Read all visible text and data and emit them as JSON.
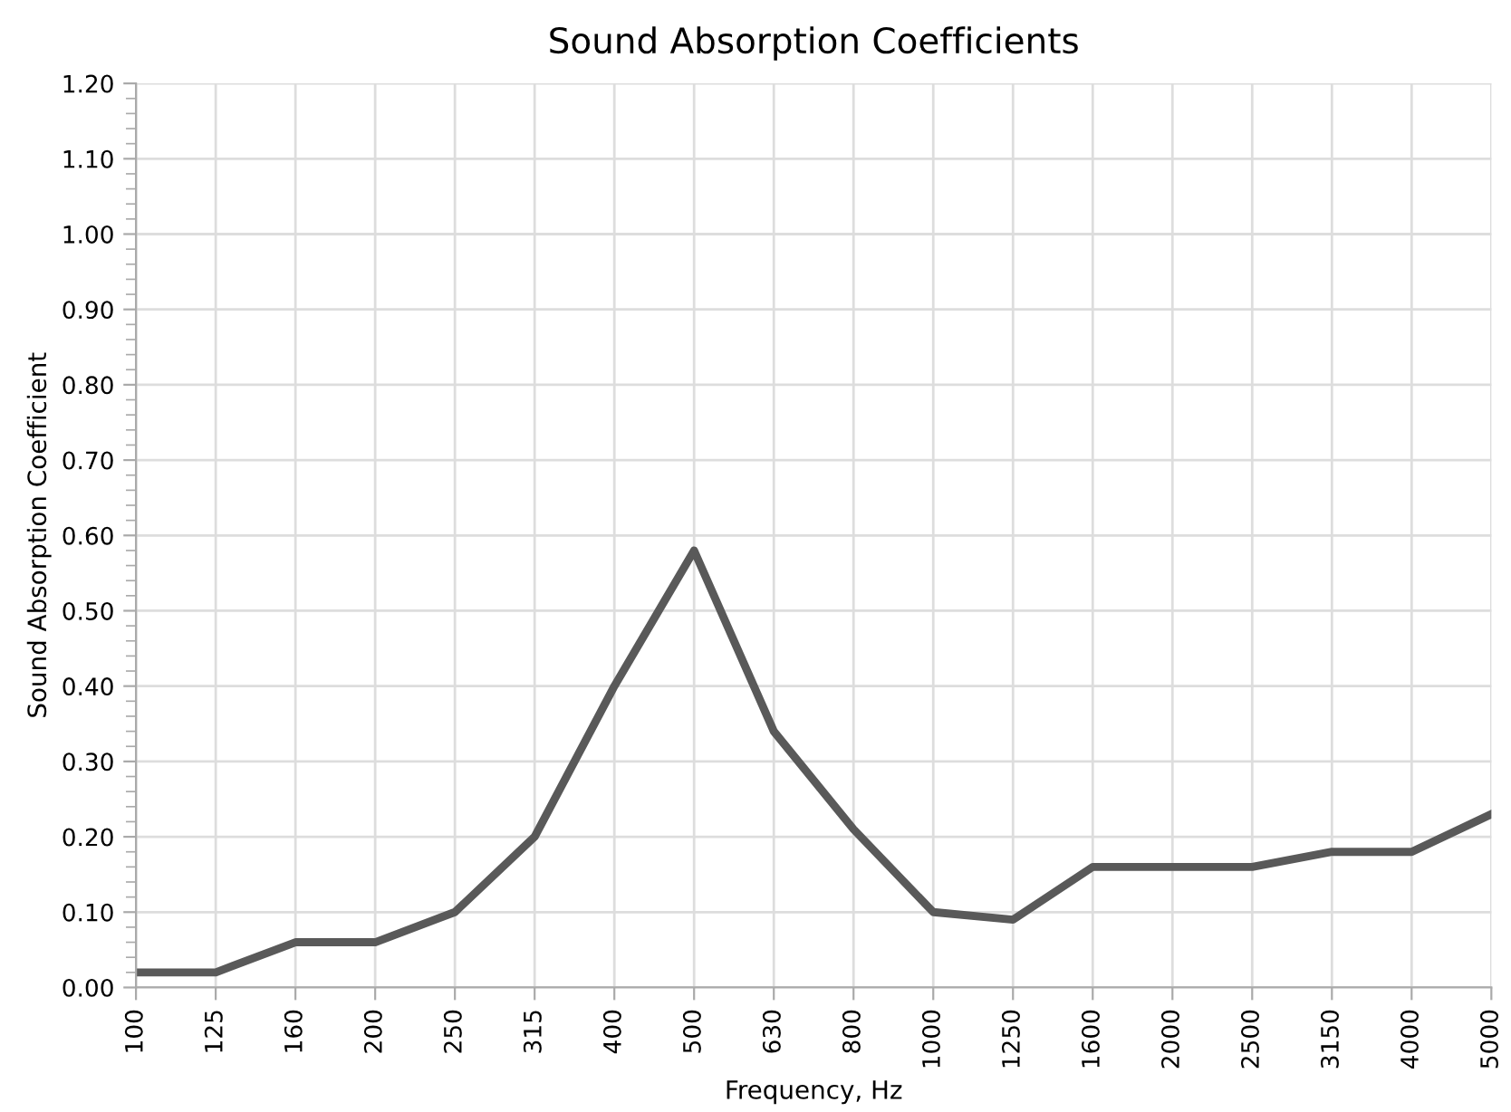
{
  "chart_data": {
    "type": "line",
    "title": "Sound Absorption Coefficients",
    "xlabel": "Frequency, Hz",
    "ylabel": "Sound Absorption Coefficient",
    "categories": [
      "100",
      "125",
      "160",
      "200",
      "250",
      "315",
      "400",
      "500",
      "630",
      "800",
      "1000",
      "1250",
      "1600",
      "2000",
      "2500",
      "3150",
      "4000",
      "5000"
    ],
    "series": [
      {
        "color": "#595959",
        "values": [
          0.02,
          0.02,
          0.06,
          0.06,
          0.1,
          0.2,
          0.4,
          0.58,
          0.34,
          0.21,
          0.1,
          0.09,
          0.16,
          0.16,
          0.16,
          0.18,
          0.18,
          0.23
        ]
      }
    ],
    "ylim": [
      0,
      1.2
    ],
    "yticks": [
      {
        "value": 0,
        "label": "0.00"
      },
      {
        "value": 0.1,
        "label": "0.10"
      },
      {
        "value": 0.2,
        "label": "0.20"
      },
      {
        "value": 0.3,
        "label": "0.30"
      },
      {
        "value": 0.4,
        "label": "0.40"
      },
      {
        "value": 0.5,
        "label": "0.50"
      },
      {
        "value": 0.6,
        "label": "0.60"
      },
      {
        "value": 0.7,
        "label": "0.70"
      },
      {
        "value": 0.8,
        "label": "0.80"
      },
      {
        "value": 0.9,
        "label": "0.90"
      },
      {
        "value": 1.0,
        "label": "1.00"
      },
      {
        "value": 1.1,
        "label": "1.10"
      },
      {
        "value": 1.2,
        "label": "1.20"
      }
    ],
    "grid": true,
    "marker": "none",
    "line_style": "solid"
  }
}
